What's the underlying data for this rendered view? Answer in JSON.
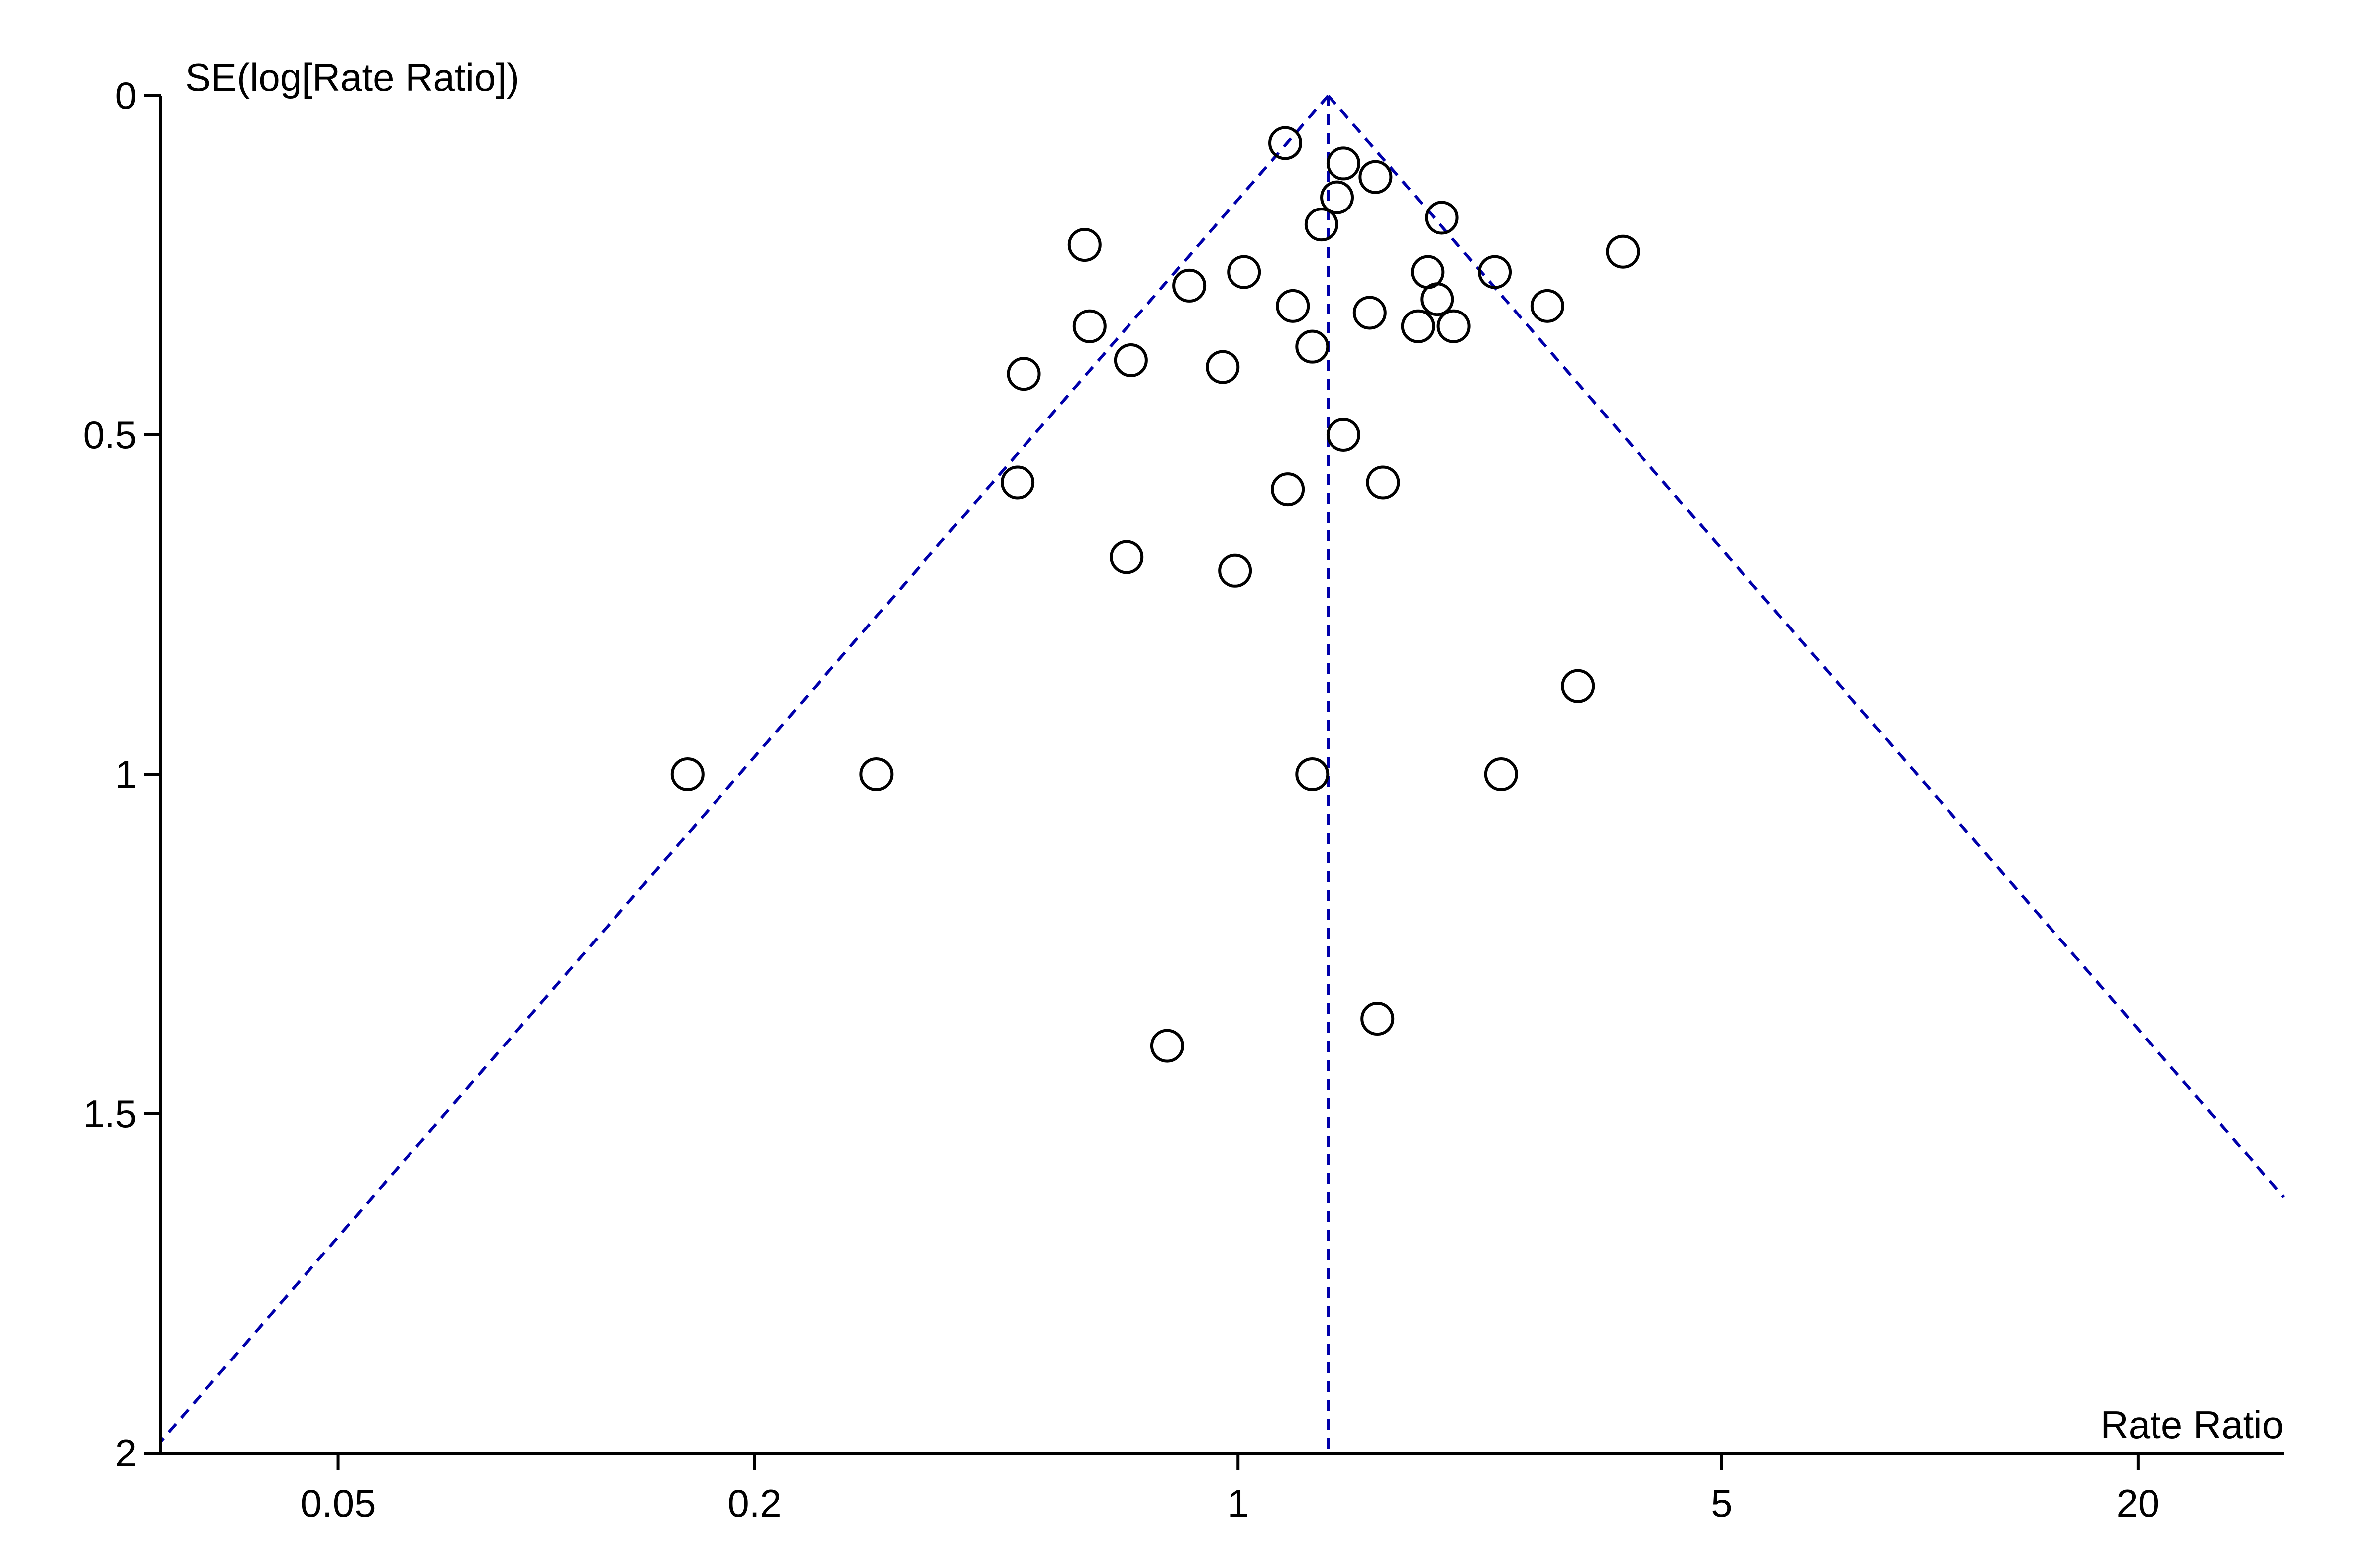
{
  "chart_data": {
    "type": "scatter",
    "subtype": "funnel plot",
    "title": "",
    "xlabel": "Rate Ratio",
    "ylabel": "SE(log[Rate Ratio])",
    "x_scale": "log",
    "y_inverted": true,
    "xlim": [
      0.0277,
      32.5
    ],
    "ylim": [
      0,
      2
    ],
    "x_ticks": [
      {
        "value": 0.05,
        "label": "0.05"
      },
      {
        "value": 0.2,
        "label": "0.2"
      },
      {
        "value": 1,
        "label": "1"
      },
      {
        "value": 5,
        "label": "5"
      },
      {
        "value": 20,
        "label": "20"
      }
    ],
    "y_ticks": [
      {
        "value": 0,
        "label": "0"
      },
      {
        "value": 0.5,
        "label": "0.5"
      },
      {
        "value": 1,
        "label": "1"
      },
      {
        "value": 1.5,
        "label": "1.5"
      },
      {
        "value": 2,
        "label": "2"
      }
    ],
    "pooled_estimate": 1.35,
    "funnel_z": 1.96,
    "grid": false,
    "colors": {
      "points": "#000000",
      "funnel": "#0000aa",
      "axes": "#000000"
    },
    "points": [
      {
        "x": 1.17,
        "y": 0.07
      },
      {
        "x": 1.42,
        "y": 0.1
      },
      {
        "x": 1.58,
        "y": 0.12
      },
      {
        "x": 1.39,
        "y": 0.15
      },
      {
        "x": 1.32,
        "y": 0.19
      },
      {
        "x": 1.97,
        "y": 0.18
      },
      {
        "x": 0.6,
        "y": 0.22
      },
      {
        "x": 3.6,
        "y": 0.23
      },
      {
        "x": 1.88,
        "y": 0.26
      },
      {
        "x": 2.35,
        "y": 0.26
      },
      {
        "x": 1.02,
        "y": 0.26
      },
      {
        "x": 0.85,
        "y": 0.28
      },
      {
        "x": 1.94,
        "y": 0.3
      },
      {
        "x": 1.2,
        "y": 0.31
      },
      {
        "x": 2.8,
        "y": 0.31
      },
      {
        "x": 1.55,
        "y": 0.32
      },
      {
        "x": 1.82,
        "y": 0.34
      },
      {
        "x": 2.05,
        "y": 0.34
      },
      {
        "x": 0.61,
        "y": 0.34
      },
      {
        "x": 1.28,
        "y": 0.37
      },
      {
        "x": 0.7,
        "y": 0.39
      },
      {
        "x": 0.49,
        "y": 0.41
      },
      {
        "x": 0.95,
        "y": 0.4
      },
      {
        "x": 1.42,
        "y": 0.5
      },
      {
        "x": 0.48,
        "y": 0.57
      },
      {
        "x": 1.18,
        "y": 0.58
      },
      {
        "x": 1.62,
        "y": 0.57
      },
      {
        "x": 0.69,
        "y": 0.68
      },
      {
        "x": 0.99,
        "y": 0.7
      },
      {
        "x": 3.1,
        "y": 0.87
      },
      {
        "x": 0.16,
        "y": 1.0
      },
      {
        "x": 0.3,
        "y": 1.0
      },
      {
        "x": 1.28,
        "y": 1.0
      },
      {
        "x": 2.4,
        "y": 1.0
      },
      {
        "x": 0.79,
        "y": 1.4
      },
      {
        "x": 1.59,
        "y": 1.36
      }
    ]
  }
}
